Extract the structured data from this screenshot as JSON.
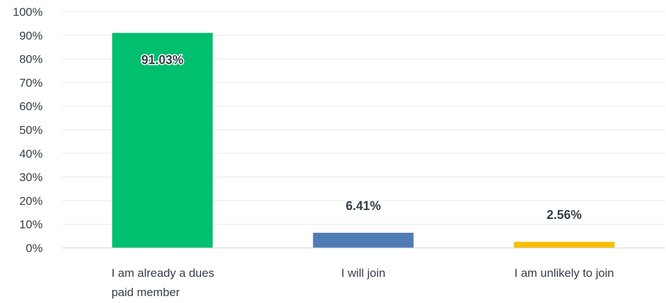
{
  "chart_data": {
    "type": "bar",
    "title": "",
    "xlabel": "",
    "ylabel": "",
    "categories": [
      [
        "I am already a dues",
        "paid member"
      ],
      [
        "I will join"
      ],
      [
        "I am unlikely to join"
      ]
    ],
    "values": [
      91.03,
      6.41,
      2.56
    ],
    "value_labels": [
      "91.03%",
      "6.41%",
      "2.56%"
    ],
    "colors": [
      "#00bf6f",
      "#507cb6",
      "#f9be00"
    ],
    "ylim": [
      0,
      100
    ],
    "yticks": [
      0,
      10,
      20,
      30,
      40,
      50,
      60,
      70,
      80,
      90,
      100
    ],
    "ytick_labels": [
      "0%",
      "10%",
      "20%",
      "30%",
      "40%",
      "50%",
      "60%",
      "70%",
      "80%",
      "90%",
      "100%"
    ],
    "grid": true,
    "legend": "none"
  }
}
